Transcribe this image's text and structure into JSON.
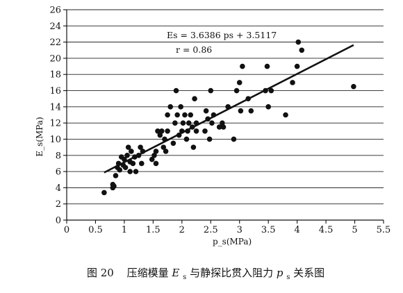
{
  "chart_data": {
    "type": "scatter",
    "title": "",
    "xlabel": "p_s(MPa)",
    "ylabel": "E_s(MPa)",
    "xlim": [
      0,
      5.5
    ],
    "ylim": [
      0,
      26
    ],
    "x_ticks": [
      "0",
      "0.5",
      "1",
      "1.5",
      "2",
      "2.5",
      "3",
      "3.5",
      "4",
      "4.5",
      "5",
      "5.5"
    ],
    "y_ticks": [
      "0",
      "2",
      "4",
      "6",
      "8",
      "10",
      "12",
      "14",
      "16",
      "18",
      "20",
      "22",
      "24",
      "26"
    ],
    "grid": "horizontal",
    "annotation_equation": "Es = 3.6386 ps + 3.5117",
    "annotation_r": "r = 0.86",
    "fit": {
      "slope": 3.6386,
      "intercept": 3.5117,
      "x_range": [
        0.65,
        4.98
      ]
    },
    "points": [
      [
        0.65,
        3.4
      ],
      [
        0.8,
        4.0
      ],
      [
        0.8,
        4.4
      ],
      [
        0.82,
        4.2
      ],
      [
        0.85,
        5.5
      ],
      [
        0.88,
        6.5
      ],
      [
        0.9,
        7.0
      ],
      [
        0.92,
        6.2
      ],
      [
        0.95,
        7.8
      ],
      [
        0.98,
        6.8
      ],
      [
        1.0,
        7.5
      ],
      [
        1.02,
        6.5
      ],
      [
        1.05,
        8.0
      ],
      [
        1.07,
        9.0
      ],
      [
        1.1,
        6.0
      ],
      [
        1.1,
        7.2
      ],
      [
        1.12,
        8.5
      ],
      [
        1.15,
        7.0
      ],
      [
        1.18,
        7.8
      ],
      [
        1.2,
        6.0
      ],
      [
        1.25,
        8.0
      ],
      [
        1.28,
        9.0
      ],
      [
        1.3,
        7.0
      ],
      [
        1.32,
        8.5
      ],
      [
        1.48,
        7.5
      ],
      [
        1.52,
        8.0
      ],
      [
        1.55,
        7.0
      ],
      [
        1.55,
        8.5
      ],
      [
        1.58,
        11.0
      ],
      [
        1.62,
        10.5
      ],
      [
        1.65,
        11.0
      ],
      [
        1.68,
        9.0
      ],
      [
        1.7,
        10.0
      ],
      [
        1.72,
        8.5
      ],
      [
        1.75,
        11.0
      ],
      [
        1.75,
        13.0
      ],
      [
        1.8,
        14.0
      ],
      [
        1.85,
        9.5
      ],
      [
        1.88,
        12.0
      ],
      [
        1.9,
        16.0
      ],
      [
        1.92,
        13.0
      ],
      [
        1.95,
        10.5
      ],
      [
        1.98,
        14.0
      ],
      [
        2.0,
        11.0
      ],
      [
        2.02,
        12.0
      ],
      [
        2.05,
        13.0
      ],
      [
        2.08,
        10.0
      ],
      [
        2.1,
        11.0
      ],
      [
        2.12,
        12.0
      ],
      [
        2.15,
        13.0
      ],
      [
        2.18,
        11.5
      ],
      [
        2.2,
        9.0
      ],
      [
        2.22,
        15.0
      ],
      [
        2.25,
        11.0
      ],
      [
        2.25,
        12.0
      ],
      [
        2.4,
        11.0
      ],
      [
        2.42,
        13.5
      ],
      [
        2.45,
        12.5
      ],
      [
        2.48,
        10.0
      ],
      [
        2.5,
        16.0
      ],
      [
        2.52,
        12.0
      ],
      [
        2.55,
        13.0
      ],
      [
        2.65,
        11.5
      ],
      [
        2.7,
        12.0
      ],
      [
        2.72,
        11.5
      ],
      [
        2.8,
        14.0
      ],
      [
        2.9,
        10.0
      ],
      [
        2.95,
        16.0
      ],
      [
        3.0,
        17.0
      ],
      [
        3.02,
        13.5
      ],
      [
        3.05,
        19.0
      ],
      [
        3.15,
        15.0
      ],
      [
        3.2,
        13.5
      ],
      [
        3.45,
        16.0
      ],
      [
        3.48,
        19.0
      ],
      [
        3.5,
        14.0
      ],
      [
        3.55,
        16.0
      ],
      [
        3.8,
        13.0
      ],
      [
        3.92,
        17.0
      ],
      [
        4.0,
        19.0
      ],
      [
        4.02,
        22.0
      ],
      [
        4.08,
        21.0
      ],
      [
        4.98,
        16.5
      ]
    ]
  },
  "caption": {
    "fig_no": "图 20",
    "prefix": "压缩模量 ",
    "es_main": "E",
    "es_sub": "s",
    "mid": " 与静探比贯入阻力 ",
    "ps_main": "p",
    "ps_sub": "s",
    "suffix": " 关系图"
  }
}
